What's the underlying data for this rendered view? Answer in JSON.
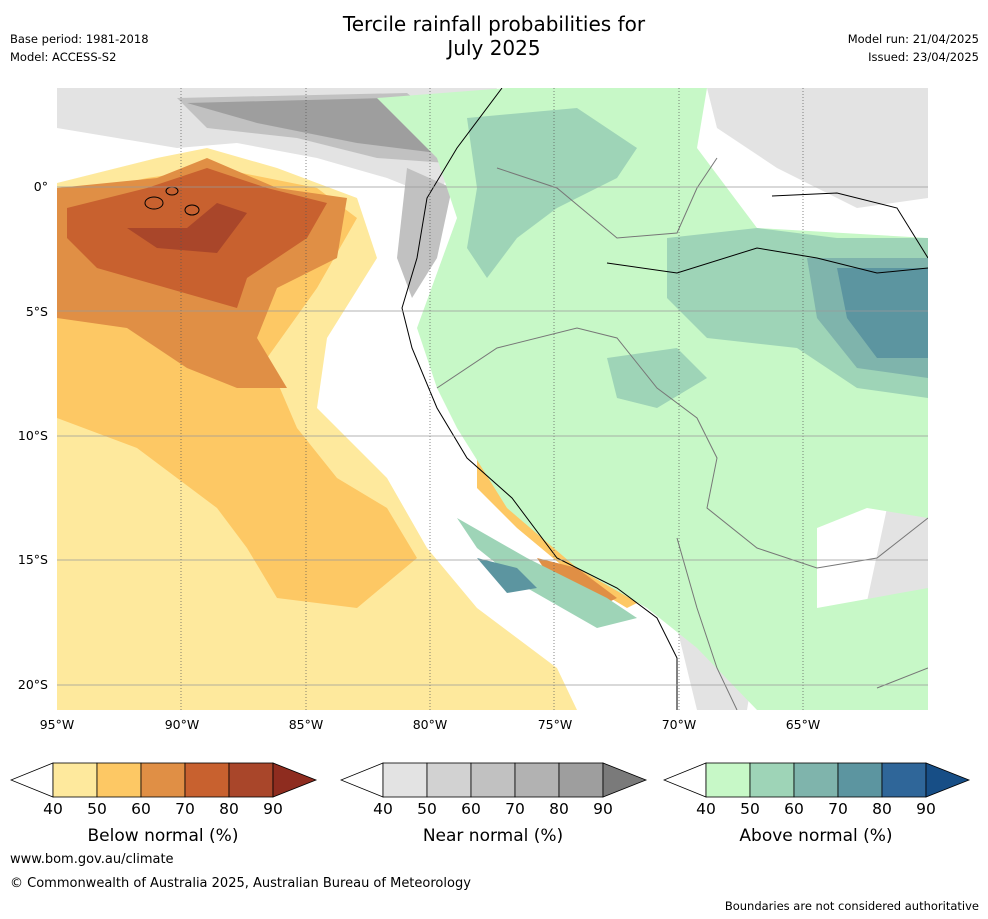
{
  "header": {
    "title_line1": "Tercile rainfall probabilities for",
    "title_line2": "July 2025",
    "base_period": "Base period: 1981-2018",
    "model": "Model: ACCESS-S2",
    "model_run": "Model run: 21/04/2025",
    "issued": "Issued: 23/04/2025"
  },
  "map": {
    "region": "Western South America",
    "lat_labels": [
      "0°",
      "5°S",
      "10°S",
      "15°S",
      "20°S"
    ],
    "lon_labels": [
      "95°W",
      "90°W",
      "85°W",
      "80°W",
      "75°W",
      "70°W",
      "65°W"
    ],
    "colors": {
      "below": [
        "#fee99d",
        "#fdc864",
        "#e08f45",
        "#c8612f",
        "#a9462a"
      ],
      "near": [
        "#e3e3e3",
        "#d2d2d2",
        "#c1c1c1",
        "#b2b2b2",
        "#9e9e9e"
      ],
      "above": [
        "#c7f8c7",
        "#9ed4b7",
        "#7fb4ac",
        "#5c95a0",
        "#2f6699"
      ],
      "ocean_bg": "#ffffff"
    }
  },
  "legends": [
    {
      "id": "below",
      "title": "Below normal (%)",
      "ticks": [
        "40",
        "50",
        "60",
        "70",
        "80",
        "90"
      ],
      "colors": [
        "#fee99d",
        "#fdc864",
        "#e08f45",
        "#c8612f",
        "#a9462a"
      ],
      "extend": "#8e2c1f"
    },
    {
      "id": "near",
      "title": "Near normal (%)",
      "ticks": [
        "40",
        "50",
        "60",
        "70",
        "80",
        "90"
      ],
      "colors": [
        "#e3e3e3",
        "#d2d2d2",
        "#c1c1c1",
        "#b2b2b2",
        "#9e9e9e"
      ],
      "extend": "#7a7a7a"
    },
    {
      "id": "above",
      "title": "Above normal (%)",
      "ticks": [
        "40",
        "50",
        "60",
        "70",
        "80",
        "90"
      ],
      "colors": [
        "#c7f8c7",
        "#9ed4b7",
        "#7fb4ac",
        "#5c95a0",
        "#2f6699"
      ],
      "extend": "#174e86"
    }
  ],
  "footer": {
    "url": "www.bom.gov.au/climate",
    "copyright": "© Commonwealth of Australia 2025, Australian Bureau of Meteorology",
    "disclaimer": "Boundaries are not considered authoritative"
  }
}
